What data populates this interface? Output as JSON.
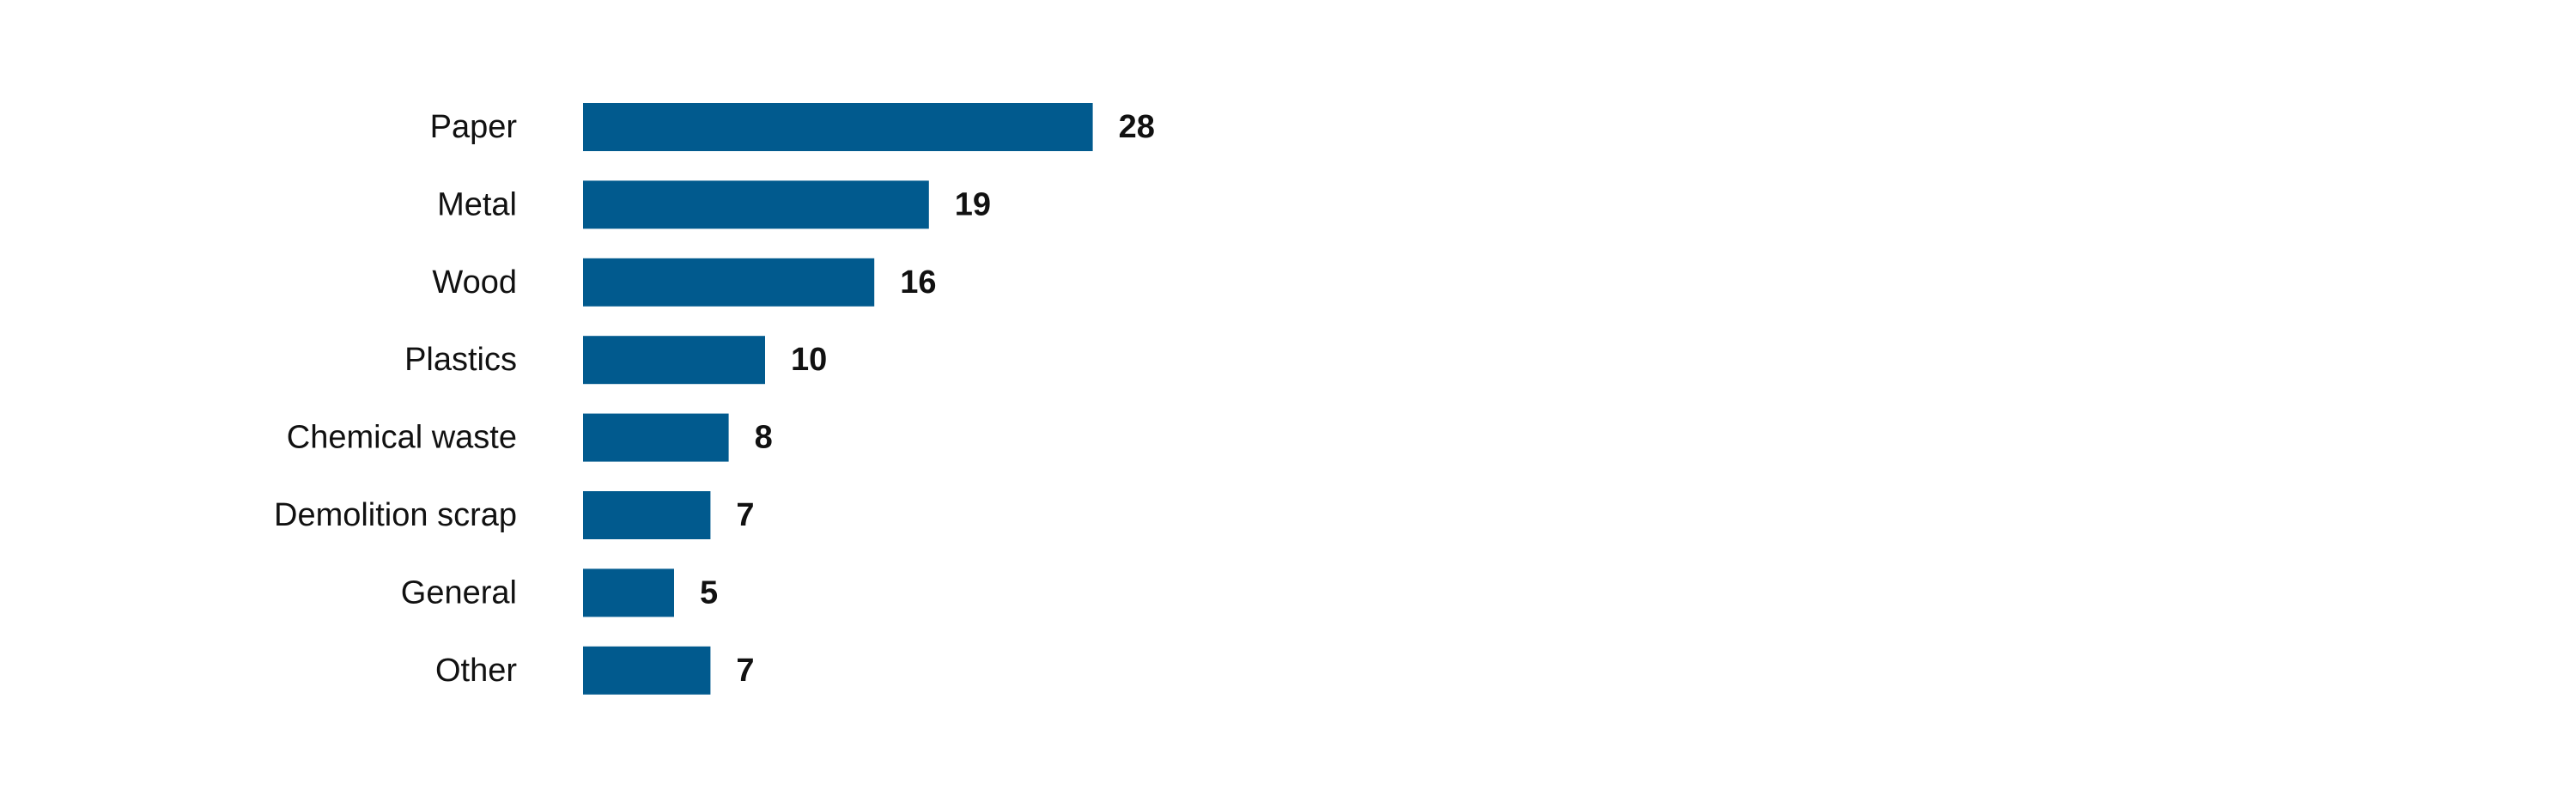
{
  "chart_data": {
    "type": "hbar",
    "categories": [
      "Paper",
      "Metal",
      "Wood",
      "Plastics",
      "Chemical waste",
      "Demolition scrap",
      "General",
      "Other"
    ],
    "values": [
      28,
      19,
      16,
      10,
      8,
      7,
      5,
      7
    ],
    "color": "#015a8e"
  }
}
